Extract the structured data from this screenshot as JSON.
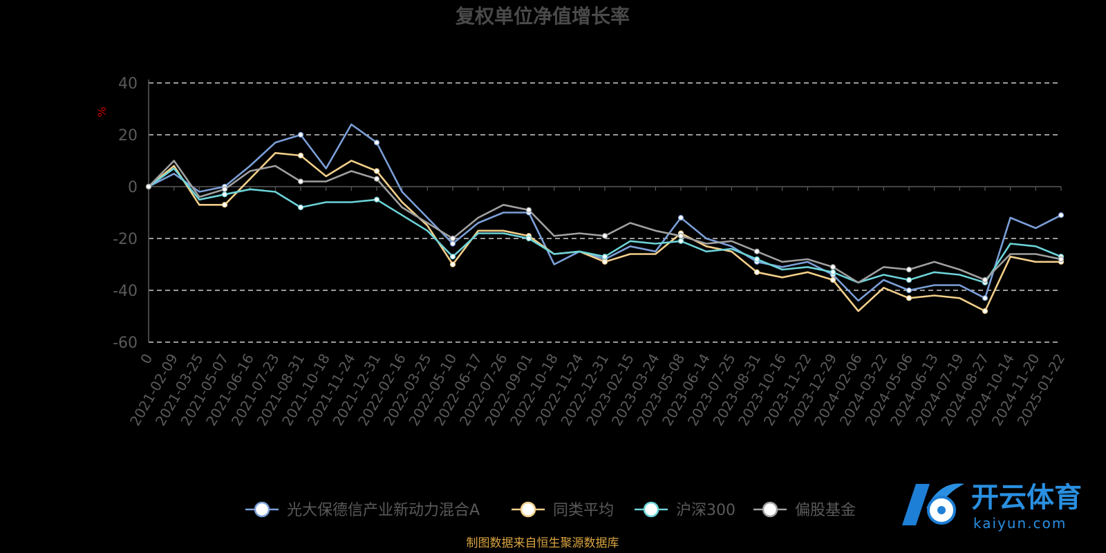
{
  "chart_data": {
    "type": "line",
    "title": "复权单位净值增长率",
    "ylabel": "%",
    "ylim": [
      -60,
      40
    ],
    "yticks": [
      40,
      20,
      0,
      -20,
      -40,
      -60
    ],
    "grid": true,
    "legend_position": "bottom",
    "x_categories": [
      "0",
      "2021-02-09",
      "2021-03-25",
      "2021-05-07",
      "2021-06-16",
      "2021-07-23",
      "2021-08-31",
      "2021-10-18",
      "2021-11-24",
      "2021-12-31",
      "2022-02-16",
      "2022-03-25",
      "2022-05-10",
      "2022-06-17",
      "2022-07-26",
      "2022-09-01",
      "2022-10-18",
      "2022-11-24",
      "2022-12-31",
      "2023-02-15",
      "2023-03-24",
      "2023-05-08",
      "2023-06-14",
      "2023-07-25",
      "2023-08-31",
      "2023-10-16",
      "2023-11-22",
      "2023-12-29",
      "2024-02-06",
      "2024-03-22",
      "2024-05-06",
      "2024-06-13",
      "2024-07-19",
      "2024-08-27",
      "2024-10-14",
      "2024-11-20",
      "2025-01-22"
    ],
    "series": [
      {
        "name": "光大保德信产业新动力混合A",
        "color": "#7b9fd8",
        "values": [
          0,
          5,
          -2,
          0,
          8,
          17,
          20,
          7,
          24,
          17,
          -2,
          -12,
          -22,
          -14,
          -10,
          -10,
          -30,
          -25,
          -28,
          -23,
          -25,
          -12,
          -20,
          -23,
          -29,
          -31,
          -29,
          -34,
          -44,
          -36,
          -40,
          -38,
          -38,
          -43,
          -12,
          -16,
          -11
        ]
      },
      {
        "name": "同类平均",
        "color": "#f2cf8a",
        "values": [
          0,
          8,
          -7,
          -7,
          3,
          13,
          12,
          4,
          10,
          6,
          -6,
          -15,
          -30,
          -17,
          -17,
          -19,
          -26,
          -25,
          -29,
          -26,
          -26,
          -18,
          -23,
          -25,
          -33,
          -35,
          -33,
          -36,
          -48,
          -39,
          -43,
          -42,
          -43,
          -48,
          -27,
          -29,
          -29
        ]
      },
      {
        "name": "沪深300",
        "color": "#6cd3d8",
        "values": [
          0,
          7,
          -5,
          -3,
          -1,
          -2,
          -8,
          -6,
          -6,
          -5,
          -11,
          -17,
          -27,
          -18,
          -18,
          -20,
          -26,
          -25,
          -27,
          -21,
          -22,
          -21,
          -25,
          -24,
          -28,
          -32,
          -31,
          -33,
          -37,
          -34,
          -36,
          -33,
          -34,
          -37,
          -22,
          -23,
          -27
        ]
      },
      {
        "name": "偏股基金",
        "color": "#a0a0a0",
        "values": [
          0,
          10,
          -4,
          -1,
          6,
          8,
          2,
          2,
          6,
          3,
          -8,
          -14,
          -20,
          -12,
          -7,
          -9,
          -19,
          -18,
          -19,
          -14,
          -17,
          -19,
          -22,
          -21,
          -25,
          -29,
          -28,
          -31,
          -37,
          -31,
          -32,
          -29,
          -32,
          -36,
          -26,
          -26,
          -28
        ]
      }
    ]
  },
  "source_note": "制图数据来自恒生聚源数据库",
  "watermark": {
    "cn": "开云体育",
    "en": "kaiyun.com"
  }
}
